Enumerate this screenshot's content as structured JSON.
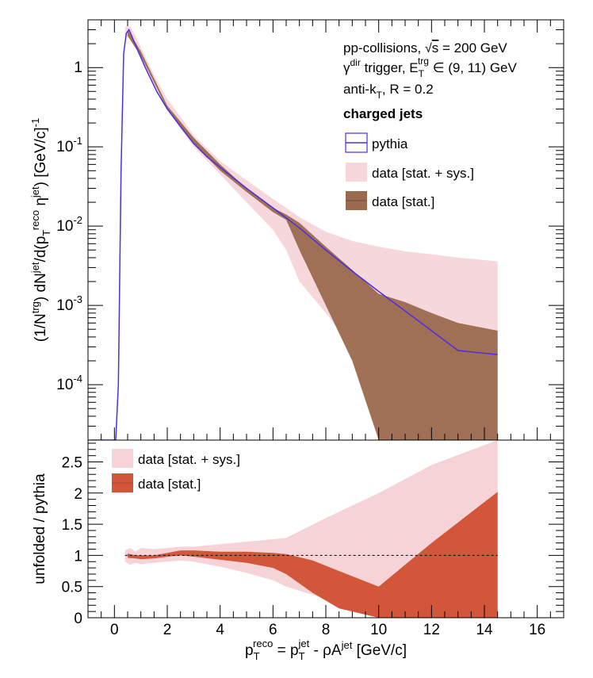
{
  "chart_data": [
    {
      "type": "line",
      "panel": "top",
      "ylabel": "(1/N^trg) dN^jet/d(p_T^reco η^jet) [GeV/c]^-1",
      "yscale": "log",
      "xlim": [
        -1,
        17
      ],
      "ylim": [
        2e-05,
        4
      ],
      "grid": false,
      "xticks": [
        0,
        2,
        4,
        6,
        8,
        10,
        12,
        14,
        16
      ],
      "yticks": [
        {
          "value": 1,
          "label": "1"
        },
        {
          "value": 0.1,
          "label": "10^-1"
        },
        {
          "value": 0.01,
          "label": "10^-2"
        },
        {
          "value": 0.001,
          "label": "10^-3"
        },
        {
          "value": 0.0001,
          "label": "10^-4"
        }
      ],
      "annotations": [
        "pp-collisions, √s = 200 GeV",
        "γ^dir trigger, E_T^trg ∈ (9, 11) GeV",
        "anti-k_T, R = 0.2",
        "charged jets"
      ],
      "legend_position": "top-right",
      "legend": [
        "pythia",
        "data [stat. + sys.]",
        "data [stat.]"
      ],
      "colors": {
        "pythia": "#4b2fe0",
        "sys": "#f3c9cf",
        "stat": "#9a6a4e"
      },
      "series": [
        {
          "name": "pythia",
          "x": [
            -0.9,
            0.05,
            0.15,
            0.25,
            0.35,
            0.45,
            0.55,
            0.7,
            0.9,
            1.2,
            1.6,
            2.0,
            2.5,
            3.0,
            3.5,
            4.0,
            5.0,
            6.0,
            7.0,
            8.0,
            9.0,
            10.0,
            11.0,
            12.0,
            13.0,
            14.5
          ],
          "y": [
            2e-05,
            2e-05,
            0.0001,
            0.05,
            1.5,
            2.7,
            3.0,
            2.3,
            1.6,
            0.95,
            0.5,
            0.3,
            0.18,
            0.11,
            0.075,
            0.055,
            0.03,
            0.017,
            0.0095,
            0.005,
            0.0027,
            0.0015,
            0.00085,
            0.00048,
            0.00027,
            0.00024
          ]
        },
        {
          "name": "data [stat. + sys.]",
          "x": [
            0.4,
            0.6,
            0.8,
            1.0,
            1.5,
            2.0,
            2.5,
            3.0,
            4.0,
            5.0,
            6.0,
            6.5,
            7.0,
            8.0,
            9.0,
            10.0,
            11.0,
            12.0,
            13.0,
            14.5
          ],
          "low": [
            2.3,
            2.6,
            2.0,
            1.3,
            0.6,
            0.3,
            0.17,
            0.1,
            0.045,
            0.02,
            0.009,
            0.005,
            0.002,
            0.0008,
            0.0003,
            0.0001,
            2e-05,
            2e-05,
            2e-05,
            2e-05
          ],
          "high": [
            3.3,
            3.3,
            2.5,
            1.8,
            0.8,
            0.4,
            0.24,
            0.14,
            0.066,
            0.038,
            0.022,
            0.017,
            0.013,
            0.0085,
            0.0065,
            0.0055,
            0.0048,
            0.0044,
            0.004,
            0.0036
          ]
        },
        {
          "name": "data [stat.]",
          "x": [
            0.5,
            1.0,
            2.0,
            3.0,
            4.0,
            5.0,
            6.0,
            6.5,
            7.0,
            8.0,
            9.0,
            10.0,
            11.0,
            12.0,
            13.0,
            14.5
          ],
          "low": [
            2.5,
            1.4,
            0.3,
            0.11,
            0.05,
            0.027,
            0.015,
            0.012,
            0.005,
            0.001,
            0.0002,
            2e-05,
            2e-05,
            2e-05,
            2e-05,
            2e-05
          ],
          "high": [
            3.0,
            1.6,
            0.33,
            0.13,
            0.06,
            0.03,
            0.017,
            0.014,
            0.011,
            0.0055,
            0.0028,
            0.0014,
            0.0011,
            0.0008,
            0.0006,
            0.00048
          ]
        }
      ]
    },
    {
      "type": "area",
      "panel": "bottom",
      "xlabel": "p_T^reco = p_T^jet - ρA^jet [GeV/c]",
      "ylabel": "unfolded / pythia",
      "xlim": [
        -1,
        17
      ],
      "ylim": [
        0,
        2.85
      ],
      "grid": false,
      "xticks": [
        0,
        2,
        4,
        6,
        8,
        10,
        12,
        14,
        16
      ],
      "yticks": [
        0,
        0.5,
        1,
        1.5,
        2,
        2.5
      ],
      "reference_line": 1,
      "legend_position": "top-left",
      "legend": [
        "data [stat. + sys.]",
        "data [stat.]"
      ],
      "colors": {
        "sys": "#f6d3d6",
        "stat": "#d2573a",
        "reference": "#000000"
      },
      "series": [
        {
          "name": "data [stat. + sys.]",
          "x": [
            0.4,
            0.6,
            0.8,
            1.0,
            1.5,
            2.0,
            2.5,
            3.0,
            4.0,
            5.0,
            6.0,
            6.5,
            8.0,
            10.0,
            12.0,
            14.5
          ],
          "low": [
            0.9,
            0.85,
            0.88,
            0.86,
            0.88,
            0.9,
            0.92,
            0.9,
            0.82,
            0.72,
            0.6,
            0.5,
            0.3,
            0.02,
            0.0,
            0.0
          ],
          "high": [
            1.08,
            1.12,
            1.06,
            1.12,
            1.1,
            1.12,
            1.14,
            1.14,
            1.18,
            1.22,
            1.26,
            1.28,
            1.6,
            2.0,
            2.45,
            2.85
          ]
        },
        {
          "name": "data [stat.]",
          "x": [
            0.5,
            0.8,
            1.0,
            1.5,
            2.0,
            2.5,
            3.0,
            4.0,
            5.0,
            6.0,
            6.5,
            7.5,
            8.5,
            10.0,
            12.0,
            14.5
          ],
          "low": [
            0.96,
            0.95,
            0.94,
            0.95,
            0.98,
            1.0,
            0.98,
            0.93,
            0.88,
            0.8,
            0.7,
            0.4,
            0.15,
            0.0,
            0.0,
            0.0
          ],
          "high": [
            1.03,
            1.0,
            1.0,
            1.0,
            1.04,
            1.08,
            1.08,
            1.06,
            1.06,
            1.04,
            1.02,
            0.92,
            0.75,
            0.5,
            1.2,
            2.02
          ]
        }
      ]
    }
  ]
}
